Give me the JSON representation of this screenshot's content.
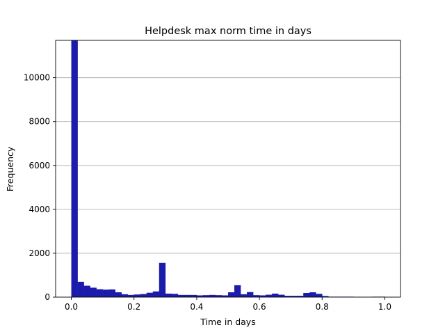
{
  "chart_data": {
    "type": "bar",
    "title": "Helpdesk max norm time in days",
    "xlabel": "Time in days",
    "ylabel": "Frequency",
    "xlim": [
      -0.05,
      1.05
    ],
    "ylim": [
      0,
      11700
    ],
    "x_ticks": [
      0.0,
      0.2,
      0.4,
      0.6,
      0.8,
      1.0
    ],
    "x_tick_labels": [
      "0.0",
      "0.2",
      "0.4",
      "0.6",
      "0.8",
      "1.0"
    ],
    "y_ticks": [
      0,
      2000,
      4000,
      6000,
      8000,
      10000
    ],
    "y_tick_labels": [
      "0",
      "2000",
      "4000",
      "6000",
      "8000",
      "10000"
    ],
    "grid": "y",
    "bar_color": "#1c1cac",
    "bin_width": 0.02,
    "bin_starts": [
      0.0,
      0.02,
      0.04,
      0.06,
      0.08,
      0.1,
      0.12,
      0.14,
      0.16,
      0.18,
      0.2,
      0.22,
      0.24,
      0.26,
      0.28,
      0.3,
      0.32,
      0.34,
      0.36,
      0.38,
      0.4,
      0.42,
      0.44,
      0.46,
      0.48,
      0.5,
      0.52,
      0.54,
      0.56,
      0.58,
      0.6,
      0.62,
      0.64,
      0.66,
      0.68,
      0.7,
      0.72,
      0.74,
      0.76,
      0.78,
      0.8,
      0.82,
      0.84,
      0.86,
      0.88,
      0.9,
      0.92,
      0.94,
      0.96,
      0.98
    ],
    "values": [
      11700,
      700,
      520,
      430,
      360,
      340,
      350,
      220,
      130,
      100,
      120,
      140,
      200,
      260,
      1560,
      160,
      150,
      100,
      100,
      100,
      80,
      90,
      100,
      90,
      80,
      220,
      540,
      130,
      230,
      90,
      80,
      110,
      160,
      110,
      60,
      60,
      60,
      190,
      220,
      150,
      50,
      20,
      20,
      20,
      20,
      10,
      10,
      10,
      20,
      20
    ]
  }
}
